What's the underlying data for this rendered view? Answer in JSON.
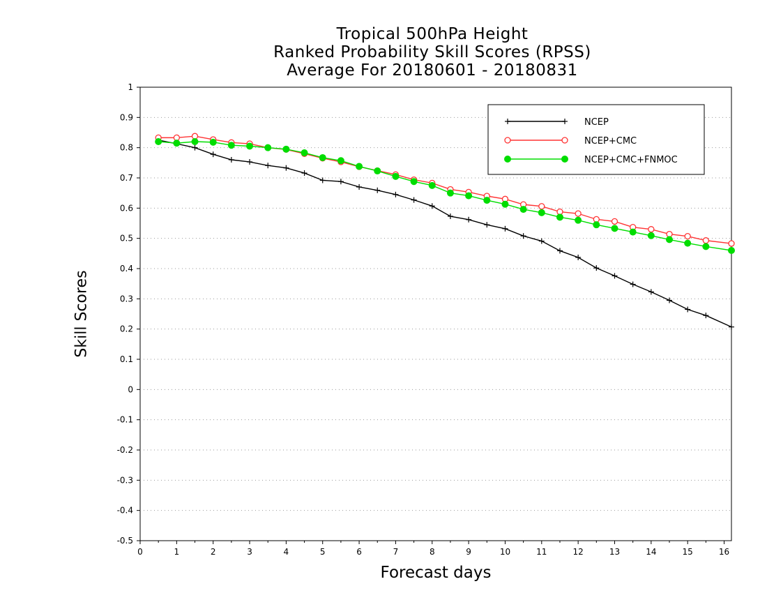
{
  "chart_data": {
    "type": "line",
    "title": "Tropical 500hPa Height",
    "subtitle": "Ranked Probability Skill Scores (RPSS)",
    "subtitle2": "Average For 20180601 - 20180831",
    "xlabel": "Forecast days",
    "ylabel": "Skill Scores",
    "xlim": [
      0,
      16.2
    ],
    "ylim": [
      -0.5,
      1
    ],
    "xticks": [
      "0",
      "1",
      "2",
      "3",
      "4",
      "5",
      "6",
      "7",
      "8",
      "9",
      "10",
      "11",
      "12",
      "13",
      "14",
      "15",
      "16"
    ],
    "yticks": [
      "1",
      "0.9",
      "0.8",
      "0.7",
      "0.6",
      "0.5",
      "0.4",
      "0.3",
      "0.2",
      "0.1",
      "0",
      "-0.1",
      "-0.2",
      "-0.3",
      "-0.4",
      "-0.5"
    ],
    "grid": true,
    "legend_position": "top-right",
    "x": [
      0.5,
      1,
      1.5,
      2,
      2.5,
      3,
      3.5,
      4,
      4.5,
      5,
      5.5,
      6,
      6.5,
      7,
      7.5,
      8,
      8.5,
      9,
      9.5,
      10,
      10.5,
      11,
      11.5,
      12,
      12.5,
      13,
      13.5,
      14,
      14.5,
      15,
      15.5,
      16.2
    ],
    "series": [
      {
        "name": "NCEP",
        "color": "#000000",
        "marker": "plus",
        "values": [
          0.825,
          0.813,
          0.8,
          0.778,
          0.76,
          0.753,
          0.741,
          0.733,
          0.716,
          0.692,
          0.688,
          0.67,
          0.659,
          0.645,
          0.627,
          0.607,
          0.573,
          0.562,
          0.545,
          0.532,
          0.508,
          0.491,
          0.459,
          0.437,
          0.402,
          0.376,
          0.348,
          0.323,
          0.295,
          0.265,
          0.245,
          0.207
        ]
      },
      {
        "name": "NCEP+CMC",
        "color": "#ff3333",
        "marker": "open-circle",
        "values": [
          0.833,
          0.833,
          0.838,
          0.827,
          0.817,
          0.813,
          0.8,
          0.794,
          0.78,
          0.765,
          0.753,
          0.737,
          0.724,
          0.711,
          0.694,
          0.683,
          0.662,
          0.653,
          0.64,
          0.63,
          0.612,
          0.606,
          0.588,
          0.582,
          0.563,
          0.556,
          0.537,
          0.53,
          0.514,
          0.507,
          0.493,
          0.483
        ]
      },
      {
        "name": "NCEP+CMC+FNMOC",
        "color": "#00dd00",
        "marker": "filled-circle",
        "values": [
          0.82,
          0.815,
          0.82,
          0.818,
          0.808,
          0.805,
          0.8,
          0.795,
          0.783,
          0.767,
          0.757,
          0.738,
          0.723,
          0.705,
          0.688,
          0.675,
          0.65,
          0.641,
          0.626,
          0.613,
          0.596,
          0.585,
          0.57,
          0.56,
          0.545,
          0.533,
          0.521,
          0.509,
          0.496,
          0.484,
          0.473,
          0.46
        ]
      }
    ]
  }
}
